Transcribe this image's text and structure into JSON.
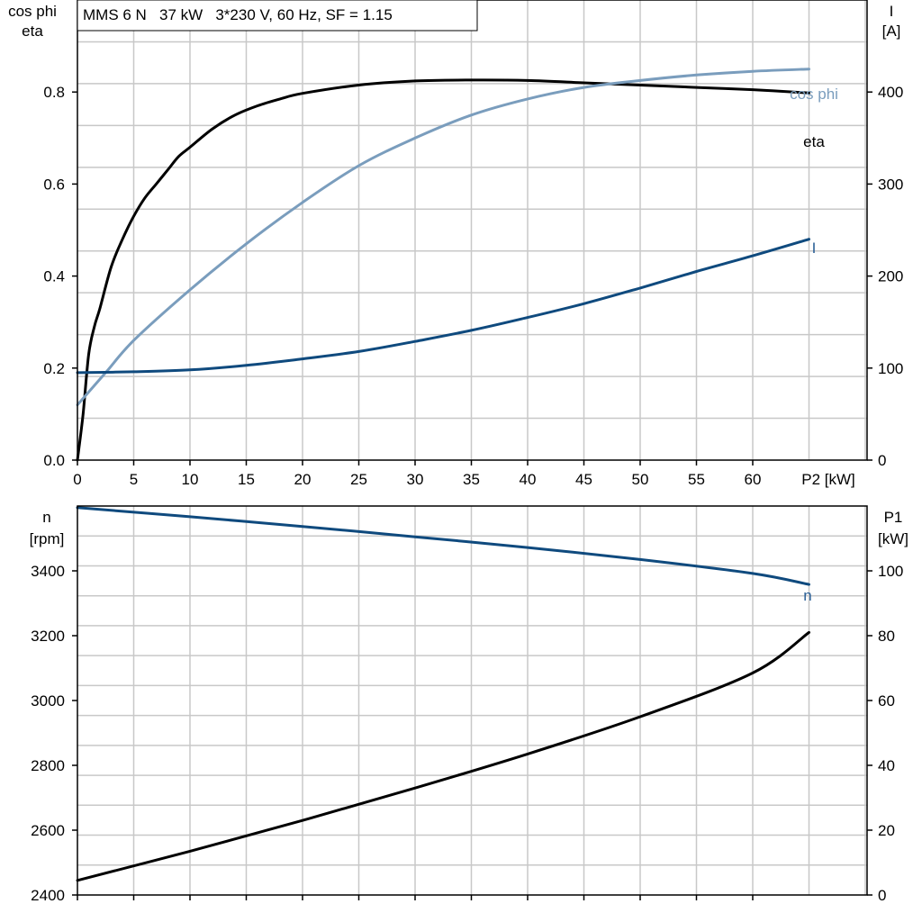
{
  "header_text": "MMS 6 N   37 kW   3*230 V, 60 Hz, SF = 1.15",
  "colors": {
    "eta": "#000000",
    "cos_phi": "#7a9dbd",
    "current": "#0f4a7e",
    "speed": "#0f4a7e",
    "p1": "#000000",
    "grid": "#c8c8c8",
    "cos_phi_label": "#7a9dbd",
    "current_label": "#2a5f96",
    "speed_label": "#2a5f96"
  },
  "chart_data": [
    {
      "type": "line",
      "x_ticks": [
        "0",
        "5",
        "10",
        "15",
        "20",
        "25",
        "30",
        "35",
        "40",
        "45",
        "50",
        "55",
        "60"
      ],
      "x_axis_label": "P2 [kW]",
      "xlim": [
        0,
        70
      ],
      "y_left_label_line1": "cos phi",
      "y_left_label_line2": "eta",
      "y_left_ticks": [
        "0.0",
        "0.2",
        "0.4",
        "0.6",
        "0.8"
      ],
      "ylim_left": [
        0,
        1.0
      ],
      "y_right_label_line1": "I",
      "y_right_label_line2": "[A]",
      "y_right_ticks": [
        "0",
        "100",
        "200",
        "300",
        "400"
      ],
      "ylim_right": [
        0,
        500
      ],
      "grid": true,
      "series": [
        {
          "name": "eta",
          "axis": "left",
          "x": [
            0,
            0.5,
            1,
            1.5,
            2,
            3,
            4,
            5,
            6,
            7,
            8,
            9,
            10,
            12,
            14,
            16,
            18,
            20,
            25,
            30,
            35,
            40,
            45,
            50,
            55,
            60,
            65
          ],
          "y": [
            0,
            0.1,
            0.23,
            0.29,
            0.33,
            0.42,
            0.48,
            0.53,
            0.57,
            0.6,
            0.63,
            0.66,
            0.68,
            0.72,
            0.75,
            0.77,
            0.785,
            0.797,
            0.815,
            0.824,
            0.826,
            0.825,
            0.82,
            0.815,
            0.81,
            0.805,
            0.798
          ]
        },
        {
          "name": "cos phi",
          "axis": "left",
          "x": [
            0,
            2.5,
            5,
            10,
            15,
            20,
            25,
            30,
            35,
            40,
            45,
            50,
            55,
            60,
            65
          ],
          "y": [
            0.12,
            0.19,
            0.26,
            0.37,
            0.47,
            0.56,
            0.64,
            0.7,
            0.75,
            0.785,
            0.81,
            0.825,
            0.837,
            0.845,
            0.85
          ]
        },
        {
          "name": "I",
          "axis": "right",
          "x": [
            0,
            5,
            10,
            15,
            20,
            25,
            30,
            35,
            40,
            45,
            50,
            55,
            60,
            65
          ],
          "y": [
            95,
            96,
            98,
            103,
            110,
            118,
            129,
            141,
            155,
            170,
            187,
            205,
            222,
            240
          ]
        }
      ]
    },
    {
      "type": "line",
      "y_left_label_line1": "n",
      "y_left_label_line2": "[rpm]",
      "y_left_ticks": [
        "2400",
        "2600",
        "2800",
        "3000",
        "3200",
        "3400"
      ],
      "ylim_left": [
        2400,
        3600
      ],
      "y_right_label_line1": "P1",
      "y_right_label_line2": "[kW]",
      "y_right_ticks": [
        "0",
        "20",
        "40",
        "60",
        "80",
        "100"
      ],
      "ylim_right": [
        0,
        120
      ],
      "xlim": [
        0,
        70
      ],
      "grid": true,
      "series": [
        {
          "name": "n",
          "axis": "left",
          "x": [
            0,
            10,
            20,
            30,
            40,
            50,
            60,
            65
          ],
          "y": [
            3595,
            3567,
            3537,
            3505,
            3472,
            3435,
            3392,
            3358
          ]
        },
        {
          "name": "P1",
          "axis": "right",
          "x": [
            0,
            10,
            20,
            30,
            40,
            50,
            60,
            65
          ],
          "y": [
            4.5,
            13.5,
            23,
            33,
            43.5,
            55,
            68.5,
            81
          ]
        }
      ]
    }
  ]
}
